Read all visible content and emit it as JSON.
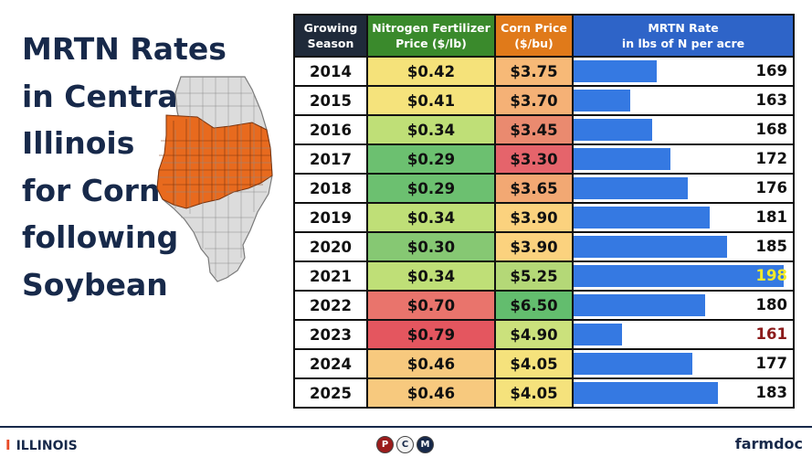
{
  "title_lines": [
    "MRTN Rates",
    "in Central",
    "Illinois",
    "for Corn",
    "following",
    "Soybean"
  ],
  "table": {
    "headers": {
      "season": [
        "Growing",
        "Season"
      ],
      "fertilizer": [
        "Nitrogen Fertilizer",
        "Price ($/lb)"
      ],
      "corn": [
        "Corn Price",
        "($/bu)"
      ],
      "rate": [
        "MRTN Rate",
        "in lbs of N per acre"
      ]
    }
  },
  "chart_data": {
    "type": "table",
    "columns": [
      "Growing Season",
      "Nitrogen Fertilizer Price ($/lb)",
      "Corn Price ($/bu)",
      "MRTN Rate in lbs of N per acre"
    ],
    "bar_scale": [
      150,
      200
    ],
    "rows": [
      {
        "year": "2014",
        "fert": "$0.42",
        "corn": "$3.75",
        "rate": 169,
        "fert_color": "#f5e27a",
        "corn_color": "#f7b977",
        "rate_color": "#111111"
      },
      {
        "year": "2015",
        "fert": "$0.41",
        "corn": "$3.70",
        "rate": 163,
        "fert_color": "#f5e37c",
        "corn_color": "#f5b176",
        "rate_color": "#111111"
      },
      {
        "year": "2016",
        "fert": "$0.34",
        "corn": "$3.45",
        "rate": 168,
        "fert_color": "#bfdf77",
        "corn_color": "#ea8a6f",
        "rate_color": "#111111"
      },
      {
        "year": "2017",
        "fert": "$0.29",
        "corn": "$3.30",
        "rate": 172,
        "fert_color": "#6cc070",
        "corn_color": "#e5646b",
        "rate_color": "#111111"
      },
      {
        "year": "2018",
        "fert": "$0.29",
        "corn": "$3.65",
        "rate": 176,
        "fert_color": "#6cc070",
        "corn_color": "#f2a873",
        "rate_color": "#111111"
      },
      {
        "year": "2019",
        "fert": "$0.34",
        "corn": "$3.90",
        "rate": 181,
        "fert_color": "#bfdf77",
        "corn_color": "#fbd27e",
        "rate_color": "#111111"
      },
      {
        "year": "2020",
        "fert": "$0.30",
        "corn": "$3.90",
        "rate": 185,
        "fert_color": "#86c873",
        "corn_color": "#fbd27e",
        "rate_color": "#111111"
      },
      {
        "year": "2021",
        "fert": "$0.34",
        "corn": "$5.25",
        "rate": 198,
        "fert_color": "#bfdf77",
        "corn_color": "#b4d877",
        "rate_color": "#f2ea2a"
      },
      {
        "year": "2022",
        "fert": "$0.70",
        "corn": "$6.50",
        "rate": 180,
        "fert_color": "#e9746c",
        "corn_color": "#63bd6e",
        "rate_color": "#111111"
      },
      {
        "year": "2023",
        "fert": "$0.79",
        "corn": "$4.90",
        "rate": 161,
        "fert_color": "#e4565f",
        "corn_color": "#cbe17c",
        "rate_color": "#8b1a1a"
      },
      {
        "year": "2024",
        "fert": "$0.46",
        "corn": "$4.05",
        "rate": 177,
        "fert_color": "#f7c97e",
        "corn_color": "#f5e27c",
        "rate_color": "#111111"
      },
      {
        "year": "2025",
        "fert": "$0.46",
        "corn": "$4.05",
        "rate": 183,
        "fert_color": "#f7c97e",
        "corn_color": "#f5e27c",
        "rate_color": "#111111"
      }
    ]
  },
  "footer": {
    "university": "ILLINOIS",
    "university_mark": "I",
    "pcm_letters": [
      "P",
      "C",
      "M"
    ],
    "brand": "farmdoc"
  },
  "map": {
    "region_color": "#e86a1e",
    "county_color": "#dcdcdc"
  }
}
